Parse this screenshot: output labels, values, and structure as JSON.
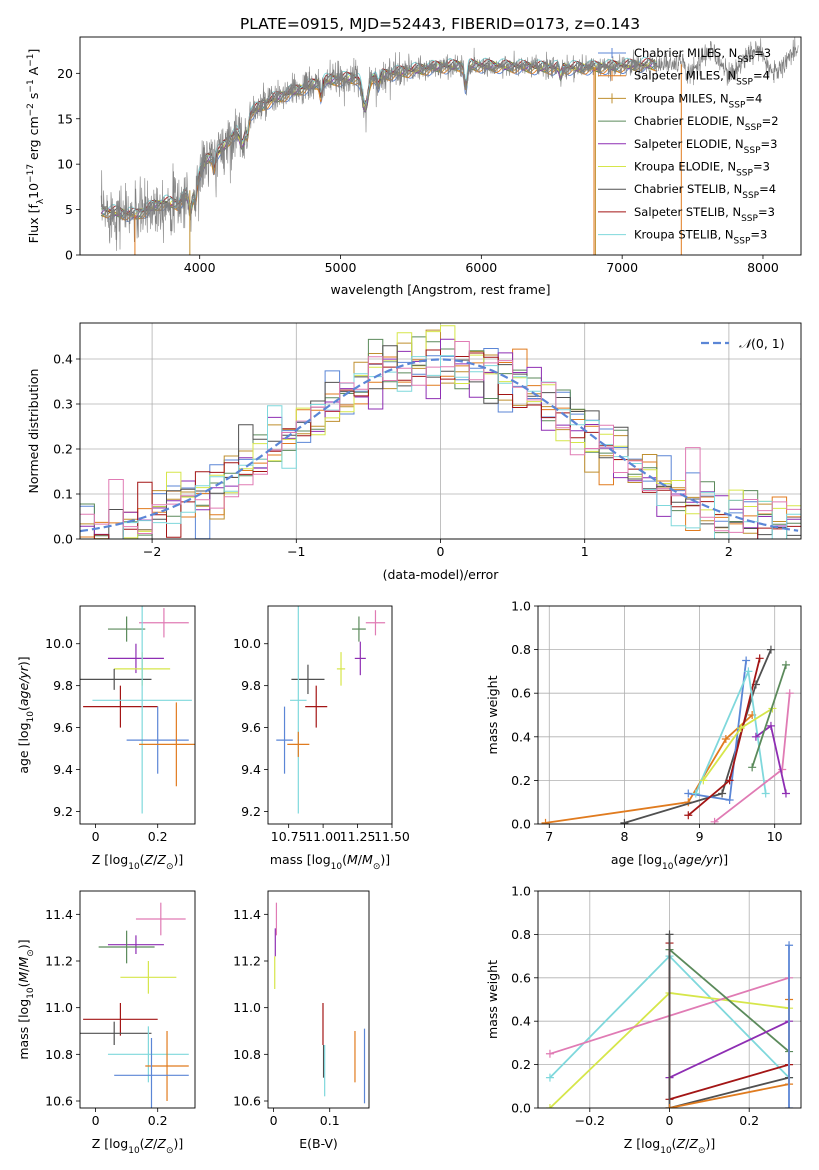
{
  "figure_title": "PLATE=0915, MJD=52443, FIBERID=0173, z=0.143",
  "palette": [
    "#5b86d6",
    "#e07b1f",
    "#bf8f2f",
    "#5b8a5b",
    "#8e2eb3",
    "#d6e64a",
    "#505050",
    "#a31515",
    "#7fd8dc",
    "#e07bb4"
  ],
  "chart_data": [
    {
      "id": "spectrum",
      "type": "line",
      "title": "PLATE=0915, MJD=52443, FIBERID=0173, z=0.143",
      "xlabel": "wavelength [Angstrom, rest frame]",
      "ylabel": "Flux [f_λ10^-17 erg cm^-2 s^-1 A^-1]",
      "xlim": [
        3150,
        8270
      ],
      "ylim": [
        0,
        24
      ],
      "xticks": [
        4000,
        5000,
        6000,
        7000,
        8000
      ],
      "yticks": [
        0,
        5,
        10,
        15,
        20
      ],
      "grid": false,
      "legend_position": "top-right",
      "continuum": {
        "x": [
          3350,
          3450,
          3550,
          3650,
          3750,
          3850,
          3950,
          4050,
          4150,
          4250,
          4350,
          4500,
          4700,
          4900,
          5100,
          5300,
          5500,
          5700,
          5900,
          6100,
          6300,
          6500,
          6700,
          6900,
          7100,
          7250
        ],
        "y": [
          4.8,
          4.6,
          4.4,
          5.2,
          5.8,
          5.6,
          7.5,
          10.5,
          11.5,
          13.5,
          15.5,
          17.0,
          18.2,
          19.2,
          19.5,
          19.8,
          20.3,
          20.7,
          20.9,
          20.8,
          20.7,
          20.6,
          20.6,
          20.7,
          20.9,
          21.0
        ]
      },
      "series": [
        {
          "name": "Chabrier MILES, N_SSP=3",
          "color": "#5b86d6",
          "marker": "|"
        },
        {
          "name": "Salpeter MILES, N_SSP=4",
          "color": "#e07b1f",
          "marker": "|"
        },
        {
          "name": "Kroupa MILES, N_SSP=4",
          "color": "#bf8f2f",
          "marker": "+"
        },
        {
          "name": "Chabrier ELODIE, N_SSP=2",
          "color": "#5b8a5b",
          "marker": ""
        },
        {
          "name": "Salpeter ELODIE, N_SSP=3",
          "color": "#8e2eb3",
          "marker": ""
        },
        {
          "name": "Kroupa ELODIE, N_SSP=3",
          "color": "#d6e64a",
          "marker": ""
        },
        {
          "name": "Chabrier STELIB, N_SSP=4",
          "color": "#505050",
          "marker": ""
        },
        {
          "name": "Salpeter STELIB, N_SSP=3",
          "color": "#a31515",
          "marker": ""
        },
        {
          "name": "Kroupa STELIB, N_SSP=3",
          "color": "#7fd8dc",
          "marker": ""
        }
      ],
      "legend": [
        {
          "label": "Chabrier MILES, N",
          "sub": "SSP",
          "tail": "=3"
        },
        {
          "label": "Salpeter MILES, N",
          "sub": "SSP",
          "tail": "=4"
        },
        {
          "label": "Kroupa MILES, N",
          "sub": "SSP",
          "tail": "=4"
        },
        {
          "label": "Chabrier ELODIE, N",
          "sub": "SSP",
          "tail": "=2"
        },
        {
          "label": "Salpeter ELODIE, N",
          "sub": "SSP",
          "tail": "=3"
        },
        {
          "label": "Kroupa ELODIE, N",
          "sub": "SSP",
          "tail": "=3"
        },
        {
          "label": "Chabrier STELIB, N",
          "sub": "SSP",
          "tail": "=4"
        },
        {
          "label": "Salpeter STELIB, N",
          "sub": "SSP",
          "tail": "=3"
        },
        {
          "label": "Kroupa STELIB, N",
          "sub": "SSP",
          "tail": "=3"
        }
      ]
    },
    {
      "id": "residuals",
      "type": "bar",
      "xlabel": "(data-model)/error",
      "ylabel": "Normed distribution",
      "xlim": [
        -2.5,
        2.5
      ],
      "ylim": [
        0,
        0.48
      ],
      "xticks": [
        -2,
        -1,
        0,
        1,
        2
      ],
      "yticks": [
        0.0,
        0.1,
        0.2,
        0.3,
        0.4
      ],
      "grid": true,
      "bin_width": 0.1,
      "curve": {
        "name": "N(0,1)",
        "mu": 0,
        "sigma": 1,
        "color": "#5b86d6",
        "style": "dashed"
      },
      "legend_position": "top-right"
    },
    {
      "id": "age-vs-Z",
      "type": "scatter",
      "xlabel": "Z [log10(Z/Z⊙)]",
      "ylabel": "age [log10(age/yr)]",
      "xlim": [
        -0.05,
        0.32
      ],
      "ylim": [
        9.14,
        10.18
      ],
      "xticks": [
        0.0,
        0.2
      ],
      "yticks": [
        9.2,
        9.4,
        9.6,
        9.8,
        10.0
      ],
      "points": [
        {
          "x": 0.22,
          "xerr": 0.08,
          "y": 10.1,
          "yerr": 0.07,
          "color": "#e07bb4"
        },
        {
          "x": 0.1,
          "xerr": 0.06,
          "y": 10.07,
          "yerr": 0.06,
          "color": "#5b8a5b"
        },
        {
          "x": 0.13,
          "xerr": 0.09,
          "y": 9.93,
          "yerr": 0.07,
          "color": "#8e2eb3"
        },
        {
          "x": 0.15,
          "xerr": 0.09,
          "y": 9.88,
          "yerr": 0.08,
          "color": "#d6e64a"
        },
        {
          "x": 0.06,
          "xerr": 0.12,
          "y": 9.83,
          "yerr": 0.05,
          "color": "#505050"
        },
        {
          "x": 0.08,
          "xerr": 0.12,
          "y": 9.7,
          "yerr": 0.1,
          "color": "#a31515"
        },
        {
          "x": 0.15,
          "xerr": 0.16,
          "y": 9.73,
          "yerr": 0.54,
          "color": "#7fd8dc"
        },
        {
          "x": 0.2,
          "xerr": 0.1,
          "y": 9.54,
          "yerr": 0.16,
          "color": "#5b86d6"
        },
        {
          "x": 0.26,
          "xerr": 0.12,
          "y": 9.52,
          "yerr": 0.2,
          "color": "#e07b1f"
        }
      ]
    },
    {
      "id": "age-vs-mass",
      "type": "scatter",
      "xlabel": "mass [log10(M/M⊙)]",
      "ylabel": "",
      "xlim": [
        10.6,
        11.5
      ],
      "ylim": [
        9.14,
        10.18
      ],
      "xticks": [
        10.75,
        11.0,
        11.25,
        11.5
      ],
      "xtick_labels": [
        "10.75",
        "11.00",
        "11.25",
        "11.50"
      ],
      "yticks": [
        9.2,
        9.4,
        9.6,
        9.8,
        10.0
      ],
      "points": [
        {
          "x": 11.38,
          "xerr": 0.07,
          "y": 10.1,
          "yerr": 0.06,
          "color": "#e07bb4"
        },
        {
          "x": 11.26,
          "xerr": 0.05,
          "y": 10.07,
          "yerr": 0.06,
          "color": "#5b8a5b"
        },
        {
          "x": 11.27,
          "xerr": 0.04,
          "y": 9.93,
          "yerr": 0.08,
          "color": "#8e2eb3"
        },
        {
          "x": 11.13,
          "xerr": 0.03,
          "y": 9.88,
          "yerr": 0.08,
          "color": "#d6e64a"
        },
        {
          "x": 10.89,
          "xerr": 0.12,
          "y": 9.83,
          "yerr": 0.07,
          "color": "#505050"
        },
        {
          "x": 10.95,
          "xerr": 0.08,
          "y": 9.7,
          "yerr": 0.1,
          "color": "#a31515"
        },
        {
          "x": 10.82,
          "xerr": 0.06,
          "y": 9.73,
          "yerr": 0.54,
          "color": "#7fd8dc"
        },
        {
          "x": 10.72,
          "xerr": 0.06,
          "y": 9.54,
          "yerr": 0.16,
          "color": "#5b86d6"
        },
        {
          "x": 10.82,
          "xerr": 0.08,
          "y": 9.52,
          "yerr": 0.06,
          "color": "#e07b1f"
        }
      ]
    },
    {
      "id": "mass-weight-vs-age",
      "type": "line",
      "xlabel": "age [log10(age/yr)]",
      "ylabel": "mass weight",
      "xlim": [
        6.85,
        10.35
      ],
      "ylim": [
        0.0,
        1.0
      ],
      "xticks": [
        7,
        8,
        9,
        10
      ],
      "yticks": [
        0.0,
        0.2,
        0.4,
        0.6,
        0.8,
        1.0
      ],
      "grid": true,
      "series": [
        {
          "color": "#e07b1f",
          "x": [
            6.95,
            8.85,
            9.35,
            9.7
          ],
          "y": [
            0.005,
            0.1,
            0.39,
            0.5
          ]
        },
        {
          "color": "#505050",
          "x": [
            8.0,
            9.3,
            9.75,
            9.95
          ],
          "y": [
            0.005,
            0.14,
            0.64,
            0.8
          ]
        },
        {
          "color": "#5b86d6",
          "x": [
            8.85,
            9.4,
            9.62
          ],
          "y": [
            0.14,
            0.11,
            0.75
          ]
        },
        {
          "color": "#a31515",
          "x": [
            8.85,
            9.4,
            9.8
          ],
          "y": [
            0.04,
            0.2,
            0.76
          ]
        },
        {
          "color": "#7fd8dc",
          "x": [
            8.95,
            9.65,
            9.88
          ],
          "y": [
            0.14,
            0.7,
            0.14
          ]
        },
        {
          "color": "#d6e64a",
          "x": [
            9.05,
            9.55,
            9.97
          ],
          "y": [
            0.2,
            0.44,
            0.53
          ]
        },
        {
          "color": "#e07bb4",
          "x": [
            9.2,
            10.1,
            10.2
          ],
          "y": [
            0.01,
            0.25,
            0.6
          ]
        },
        {
          "color": "#8e2eb3",
          "x": [
            9.75,
            9.95,
            10.15
          ],
          "y": [
            0.4,
            0.45,
            0.14
          ]
        },
        {
          "color": "#5b8a5b",
          "x": [
            9.7,
            10.15
          ],
          "y": [
            0.26,
            0.73
          ]
        }
      ]
    },
    {
      "id": "mass-vs-Z",
      "type": "scatter",
      "xlabel": "Z [log10(Z/Z⊙)]",
      "ylabel": "mass [log10(M/M⊙)]",
      "xlim": [
        -0.05,
        0.32
      ],
      "ylim": [
        10.57,
        11.5
      ],
      "xticks": [
        0.0,
        0.2
      ],
      "yticks": [
        10.6,
        10.8,
        11.0,
        11.2,
        11.4
      ],
      "points": [
        {
          "x": 0.21,
          "xerr": 0.08,
          "y": 11.38,
          "yerr": 0.07,
          "color": "#e07bb4"
        },
        {
          "x": 0.13,
          "xerr": 0.09,
          "y": 11.27,
          "yerr": 0.04,
          "color": "#8e2eb3"
        },
        {
          "x": 0.1,
          "xerr": 0.09,
          "y": 11.26,
          "yerr": 0.07,
          "color": "#5b8a5b"
        },
        {
          "x": 0.17,
          "xerr": 0.09,
          "y": 11.13,
          "yerr": 0.07,
          "color": "#d6e64a"
        },
        {
          "x": 0.08,
          "xerr": 0.12,
          "y": 10.95,
          "yerr": 0.07,
          "color": "#a31515"
        },
        {
          "x": 0.06,
          "xerr": 0.12,
          "y": 10.89,
          "yerr": 0.05,
          "color": "#505050"
        },
        {
          "x": 0.17,
          "xerr": 0.13,
          "y": 10.8,
          "yerr": 0.12,
          "color": "#7fd8dc"
        },
        {
          "x": 0.23,
          "xerr": 0.07,
          "y": 10.75,
          "yerr": 0.15,
          "color": "#e07b1f"
        },
        {
          "x": 0.18,
          "xerr": 0.12,
          "y": 10.71,
          "yerr": 0.16,
          "color": "#5b86d6"
        }
      ]
    },
    {
      "id": "mass-vs-EBV",
      "type": "scatter",
      "xlabel": "E(B-V)",
      "ylabel": "",
      "xlim": [
        -0.01,
        0.17
      ],
      "ylim": [
        10.57,
        11.5
      ],
      "xticks": [
        0.0,
        0.1
      ],
      "yticks": [
        10.6,
        10.8,
        11.0,
        11.2,
        11.4
      ],
      "points": [
        {
          "x": 0.005,
          "xerr": 0.0,
          "y": 11.38,
          "yerr": 0.07,
          "color": "#e07bb4"
        },
        {
          "x": 0.003,
          "xerr": 0.0,
          "y": 11.28,
          "yerr": 0.06,
          "color": "#8e2eb3"
        },
        {
          "x": 0.002,
          "xerr": 0.0,
          "y": 11.15,
          "yerr": 0.07,
          "color": "#d6e64a"
        },
        {
          "x": 0.088,
          "xerr": 0.0,
          "y": 10.93,
          "yerr": 0.09,
          "color": "#a31515"
        },
        {
          "x": 0.089,
          "xerr": 0.0,
          "y": 10.77,
          "yerr": 0.07,
          "color": "#505050"
        },
        {
          "x": 0.091,
          "xerr": 0.0,
          "y": 10.73,
          "yerr": 0.11,
          "color": "#7fd8dc"
        },
        {
          "x": 0.145,
          "xerr": 0.0,
          "y": 10.79,
          "yerr": 0.11,
          "color": "#e07b1f"
        },
        {
          "x": 0.162,
          "xerr": 0.0,
          "y": 10.75,
          "yerr": 0.16,
          "color": "#5b86d6"
        }
      ]
    },
    {
      "id": "mass-weight-vs-Z",
      "type": "line",
      "xlabel": "Z [log10(Z/Z⊙)]",
      "ylabel": "mass weight",
      "xlim": [
        -0.33,
        0.33
      ],
      "ylim": [
        0.0,
        1.0
      ],
      "xticks": [
        -0.2,
        0.0,
        0.2
      ],
      "yticks": [
        0.0,
        0.2,
        0.4,
        0.6,
        0.8,
        1.0
      ],
      "grid": true,
      "series": [
        {
          "color": "#7fd8dc",
          "x": [
            -0.3,
            0.0,
            0.3
          ],
          "y": [
            0.14,
            0.7,
            0.14
          ]
        },
        {
          "color": "#d6e64a",
          "x": [
            -0.3,
            0.0,
            0.3
          ],
          "y": [
            0.0,
            0.53,
            0.46
          ]
        },
        {
          "color": "#e07bb4",
          "x": [
            -0.3,
            0.3
          ],
          "y": [
            0.25,
            0.6
          ]
        },
        {
          "color": "#5b8a5b",
          "x": [
            0.0,
            0.3
          ],
          "y": [
            0.73,
            0.26
          ]
        },
        {
          "color": "#8e2eb3",
          "x": [
            0.0,
            0.3
          ],
          "y": [
            0.14,
            0.4
          ]
        },
        {
          "color": "#a31515",
          "x": [
            0.0,
            0.0,
            0.3
          ],
          "y": [
            0.76,
            0.04,
            0.2
          ]
        },
        {
          "color": "#505050",
          "x": [
            0.0,
            0.0,
            0.3
          ],
          "y": [
            0.8,
            0.0,
            0.14
          ]
        },
        {
          "color": "#e07b1f",
          "x": [
            0.0,
            0.3,
            0.3
          ],
          "y": [
            0.0,
            0.11,
            0.5
          ]
        },
        {
          "color": "#5b86d6",
          "x": [
            0.3,
            0.3
          ],
          "y": [
            0.75,
            0.0
          ]
        }
      ]
    }
  ]
}
